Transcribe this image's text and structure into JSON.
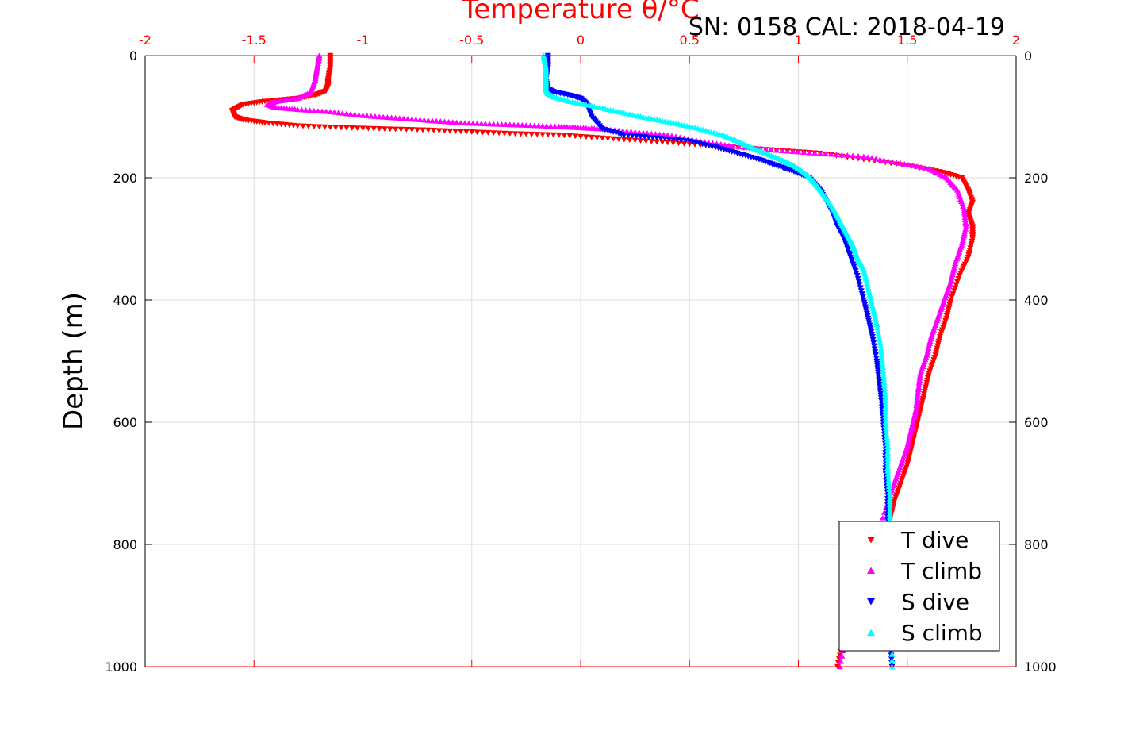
{
  "chart_data": {
    "type": "scatter",
    "title": "Temperature θ/°C",
    "subtitle": "SN: 0158  CAL: 2018-04-19",
    "ylabel": "Depth (m)",
    "xlim": [
      -2,
      2
    ],
    "ylim": [
      0,
      1000
    ],
    "y_reversed": true,
    "x_ticks": [
      "-2",
      "-1.5",
      "-1",
      "-0.5",
      "0",
      "0.5",
      "1",
      "1.5",
      "2"
    ],
    "y_ticks": [
      "0",
      "200",
      "400",
      "600",
      "800",
      "1000"
    ],
    "grid": true,
    "legend_position": "bottom-right",
    "colors": {
      "top_axis": "#ff0000",
      "t_dive": "#ff0000",
      "t_climb": "#ff00ff",
      "s_dive": "#0000ff",
      "s_climb": "#00ffff"
    },
    "series": [
      {
        "name": "T dive",
        "marker": "triangle-down",
        "color": "#ff0000",
        "x": [
          -1.15,
          -1.15,
          -1.16,
          -1.16,
          -1.17,
          -1.22,
          -1.3,
          -1.45,
          -1.55,
          -1.6,
          -1.59,
          -1.55,
          -1.45,
          -1.3,
          -1.1,
          -0.9,
          -0.7,
          -0.5,
          -0.3,
          -0.1,
          0.1,
          0.3,
          0.5,
          0.7,
          0.9,
          1.1,
          1.3,
          1.5,
          1.65,
          1.75,
          1.78,
          1.8,
          1.78,
          1.8,
          1.8,
          1.78,
          1.74,
          1.7,
          1.68,
          1.65,
          1.63,
          1.6,
          1.58,
          1.56,
          1.54,
          1.52,
          1.5,
          1.47,
          1.44,
          1.42,
          1.39,
          1.33,
          1.26,
          1.21,
          1.18
        ],
        "y": [
          0,
          20,
          40,
          50,
          58,
          65,
          70,
          75,
          80,
          90,
          100,
          105,
          110,
          115,
          118,
          120,
          122,
          125,
          128,
          130,
          135,
          140,
          145,
          150,
          155,
          160,
          170,
          180,
          190,
          200,
          220,
          240,
          260,
          280,
          300,
          330,
          360,
          400,
          430,
          460,
          490,
          520,
          550,
          580,
          610,
          640,
          670,
          700,
          730,
          760,
          800,
          850,
          900,
          950,
          1000
        ]
      },
      {
        "name": "T climb",
        "marker": "triangle-up",
        "color": "#ff00ff",
        "x": [
          -1.2,
          -1.21,
          -1.22,
          -1.24,
          -1.3,
          -1.4,
          -1.44,
          -1.4,
          -1.3,
          -1.15,
          -1.0,
          -0.85,
          -0.7,
          -0.55,
          -0.4,
          -0.25,
          -0.1,
          0.0,
          0.1,
          0.25,
          0.4,
          0.55,
          0.7,
          0.9,
          1.1,
          1.3,
          1.45,
          1.6,
          1.68,
          1.73,
          1.76,
          1.77,
          1.75,
          1.72,
          1.7,
          1.67,
          1.64,
          1.61,
          1.59,
          1.56,
          1.55,
          1.54,
          1.52,
          1.5,
          1.47,
          1.44,
          1.41,
          1.35,
          1.28,
          1.23,
          1.19
        ],
        "y": [
          0,
          20,
          40,
          60,
          70,
          75,
          80,
          85,
          88,
          92,
          98,
          102,
          106,
          110,
          112,
          114,
          116,
          118,
          120,
          125,
          130,
          140,
          148,
          155,
          160,
          165,
          175,
          185,
          200,
          220,
          250,
          280,
          310,
          340,
          370,
          400,
          430,
          460,
          490,
          520,
          550,
          580,
          610,
          640,
          670,
          700,
          730,
          800,
          860,
          930,
          1000
        ]
      },
      {
        "name": "S dive",
        "marker": "triangle-down",
        "color": "#0000ff",
        "x": [
          -0.15,
          -0.15,
          -0.16,
          -0.15,
          -0.12,
          -0.05,
          0.0,
          0.03,
          0.05,
          0.1,
          0.2,
          0.35,
          0.5,
          0.62,
          0.72,
          0.82,
          0.9,
          0.98,
          1.05,
          1.1,
          1.13,
          1.16,
          1.18,
          1.21,
          1.24,
          1.27,
          1.3,
          1.32,
          1.34,
          1.36,
          1.37,
          1.38,
          1.39,
          1.4,
          1.4,
          1.41,
          1.41,
          1.41,
          1.42,
          1.42,
          1.42,
          1.43
        ],
        "y": [
          0,
          20,
          40,
          55,
          60,
          65,
          70,
          80,
          100,
          120,
          130,
          135,
          140,
          150,
          160,
          170,
          180,
          190,
          200,
          220,
          240,
          260,
          280,
          300,
          330,
          360,
          400,
          430,
          460,
          500,
          530,
          560,
          600,
          640,
          680,
          720,
          760,
          800,
          850,
          900,
          950,
          1000
        ]
      },
      {
        "name": "S climb",
        "marker": "triangle-up",
        "color": "#00ffff",
        "x": [
          -0.17,
          -0.16,
          -0.16,
          -0.16,
          -0.15,
          -0.12,
          -0.05,
          0.05,
          0.15,
          0.25,
          0.35,
          0.45,
          0.55,
          0.65,
          0.72,
          0.78,
          0.85,
          0.92,
          0.98,
          1.04,
          1.08,
          1.12,
          1.16,
          1.19,
          1.22,
          1.25,
          1.27,
          1.3,
          1.32,
          1.34,
          1.36,
          1.38,
          1.39,
          1.4,
          1.4,
          1.41,
          1.41,
          1.42,
          1.42,
          1.42,
          1.43,
          1.43,
          1.43
        ],
        "y": [
          0,
          20,
          40,
          55,
          62,
          68,
          75,
          82,
          90,
          98,
          105,
          112,
          120,
          130,
          140,
          150,
          160,
          170,
          180,
          195,
          210,
          230,
          250,
          270,
          290,
          310,
          330,
          350,
          380,
          410,
          440,
          480,
          520,
          560,
          600,
          640,
          680,
          720,
          760,
          800,
          850,
          920,
          1000
        ]
      }
    ]
  }
}
